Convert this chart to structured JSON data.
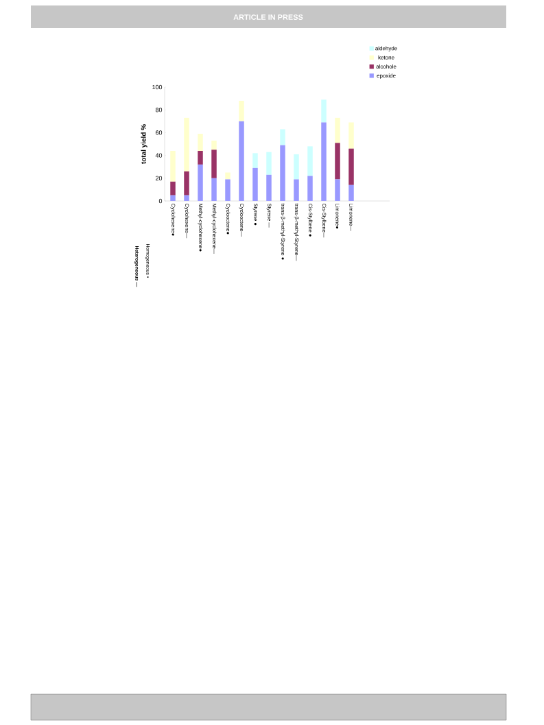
{
  "chart_data": {
    "type": "bar",
    "stacked": true,
    "ylabel": "total yield %",
    "annotations": [
      "ARTICLE IN PRESS",
      "Homogeneous •",
      "Heterogeneous —"
    ],
    "categories": [
      "Cyclohexene●",
      "Cyclohexene—",
      "Methyl-cyclohexene●",
      "Methyl-cyclohexene—",
      "Cyclooctene●",
      "Cyclooctene—",
      "Styrene ●",
      "Styrene —",
      "trans-β-methyl-Styrene ●",
      "trans-β-methyl-Styrene—",
      "Cis-Stylbene ●",
      "Cis-Stylbene—",
      "Limonene●",
      "Limonene—"
    ],
    "series": [
      {
        "name": "epoxide",
        "color": "#9999ff",
        "values": [
          5,
          5,
          32,
          20,
          19,
          70,
          29,
          23,
          49,
          19,
          22,
          69,
          19,
          14
        ]
      },
      {
        "name": "alcohole",
        "color": "#993366",
        "values": [
          12,
          21,
          12,
          25,
          0,
          0,
          0,
          0,
          0,
          0,
          0,
          0,
          32,
          32
        ]
      },
      {
        "name": "ketone",
        "color": "#ffffcc",
        "values": [
          27,
          47,
          15,
          8,
          6,
          18,
          0,
          0,
          0,
          0,
          0,
          0,
          22,
          23
        ]
      },
      {
        "name": "aldehyde",
        "color": "#ccffff",
        "values": [
          0,
          0,
          0,
          0,
          0,
          0,
          13,
          20,
          14,
          22,
          26,
          20,
          0,
          0
        ]
      }
    ],
    "ylim": [
      0,
      100
    ],
    "yticks": [
      0,
      20,
      40,
      60,
      80,
      100
    ],
    "legend": "top right"
  }
}
